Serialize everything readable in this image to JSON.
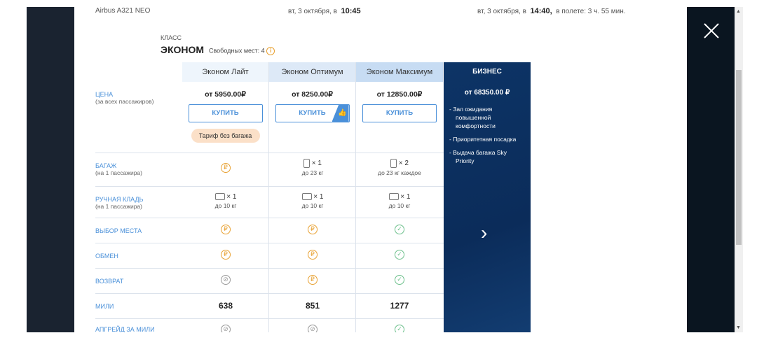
{
  "flight": {
    "aircraft": "Airbus A321 NEO",
    "dep_date": "вт, 3 октября, в",
    "dep_time": "10:45",
    "arr_date": "вт, 3 октября, в",
    "arr_time": "14:40,",
    "duration": "в полете: 3 ч. 55 мин."
  },
  "class": {
    "label": "КЛАСС",
    "name": "ЭКОНОМ",
    "seats": "Свободных мест: 4",
    "info_icon": "info-icon"
  },
  "rows": {
    "price": "ЦЕНА",
    "price_sub": "(за всех пассажиров)",
    "baggage": "БАГАЖ",
    "baggage_sub": "(на 1 пассажира)",
    "hand": "РУЧНАЯ КЛАДЬ",
    "hand_sub": "(на 1 пассажира)",
    "seat": "ВЫБОР МЕСТА",
    "exchange": "ОБМЕН",
    "refund": "ВОЗВРАТ",
    "miles": "МИЛИ",
    "upgrade": "АПГРЕЙД ЗА МИЛИ"
  },
  "tariffs": [
    {
      "name": "Эконом Лайт",
      "price": "от 5950.00₽",
      "buy": "КУПИТЬ",
      "tag": "Тариф без багажа",
      "baggage": "₽",
      "hand_count": "× 1",
      "hand_weight": "до 10 кг",
      "seat": "₽",
      "exchange": "₽",
      "refund": "⊘",
      "miles": "638",
      "upgrade": "⊘",
      "header_color": "#eef5fc"
    },
    {
      "name": "Эконом Оптимум",
      "price": "от 8250.00₽",
      "buy": "КУПИТЬ",
      "recommended_icon": "thumbs-up-icon",
      "baggage_count": "× 1",
      "baggage_weight": "до 23 кг",
      "hand_count": "× 1",
      "hand_weight": "до 10 кг",
      "seat": "₽",
      "exchange": "₽",
      "refund": "₽",
      "miles": "851",
      "upgrade": "⊘",
      "header_color": "#dde9f7"
    },
    {
      "name": "Эконом Максимум",
      "price": "от 12850.00₽",
      "buy": "КУПИТЬ",
      "baggage_count": "× 2",
      "baggage_weight": "до 23 кг каждое",
      "hand_count": "× 1",
      "hand_weight": "до 10 кг",
      "seat": "✓",
      "exchange": "✓",
      "refund": "✓",
      "miles": "1277",
      "upgrade": "✓",
      "header_color": "#c7dcf3"
    }
  ],
  "business": {
    "name": "БИЗНЕС",
    "price": "от 68350.00 ₽",
    "features": [
      "- Зал ожидания повышенной комфортности",
      "- Приоритетная посадка",
      "- Выдача багажа Sky Priority"
    ],
    "next": "›"
  },
  "colors": {
    "accent": "#4a90d9",
    "paid": "#e8a030",
    "included": "#6cc08b",
    "business_bg": "#0b2c5a"
  }
}
